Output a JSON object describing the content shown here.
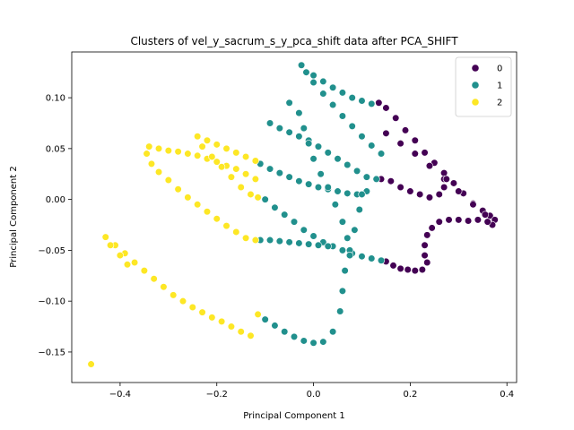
{
  "chart_data": {
    "type": "scatter",
    "title": "Clusters of vel_y_sacrum_s_y_pca_shift data after PCA_SHIFT",
    "xlabel": "Principal Component 1",
    "ylabel": "Principal Component 2",
    "xlim": [
      -0.5,
      0.42
    ],
    "ylim": [
      -0.18,
      0.145
    ],
    "xticks": [
      -0.4,
      -0.2,
      0.0,
      0.2,
      0.4
    ],
    "xtick_labels": [
      "−0.4",
      "−0.2",
      "0.0",
      "0.2",
      "0.4"
    ],
    "yticks": [
      -0.15,
      -0.1,
      -0.05,
      0.0,
      0.05,
      0.1
    ],
    "ytick_labels": [
      "−0.15",
      "−0.10",
      "−0.05",
      "0.00",
      "0.05",
      "0.10"
    ],
    "grid": false,
    "legend": {
      "placement": "top-right",
      "title": ""
    },
    "series": [
      {
        "name": "0",
        "color": "#440154",
        "points": [
          [
            0.135,
            0.095
          ],
          [
            0.15,
            0.09
          ],
          [
            0.17,
            0.08
          ],
          [
            0.19,
            0.068
          ],
          [
            0.21,
            0.058
          ],
          [
            0.23,
            0.046
          ],
          [
            0.25,
            0.036
          ],
          [
            0.27,
            0.026
          ],
          [
            0.29,
            0.016
          ],
          [
            0.31,
            0.006
          ],
          [
            0.33,
            -0.004
          ],
          [
            0.35,
            -0.011
          ],
          [
            0.365,
            -0.016
          ],
          [
            0.375,
            -0.02
          ],
          [
            0.37,
            -0.025
          ],
          [
            0.15,
            0.065
          ],
          [
            0.18,
            0.055
          ],
          [
            0.21,
            0.045
          ],
          [
            0.24,
            0.033
          ],
          [
            0.27,
            0.02
          ],
          [
            0.3,
            0.008
          ],
          [
            0.33,
            -0.005
          ],
          [
            0.355,
            -0.015
          ],
          [
            0.14,
            0.02
          ],
          [
            0.16,
            0.018
          ],
          [
            0.18,
            0.012
          ],
          [
            0.2,
            0.008
          ],
          [
            0.22,
            0.005
          ],
          [
            0.24,
            0.002
          ],
          [
            0.26,
            0.005
          ],
          [
            0.27,
            0.012
          ],
          [
            0.275,
            0.02
          ],
          [
            0.36,
            -0.022
          ],
          [
            0.34,
            -0.02
          ],
          [
            0.32,
            -0.021
          ],
          [
            0.3,
            -0.02
          ],
          [
            0.28,
            -0.02
          ],
          [
            0.26,
            -0.022
          ],
          [
            0.245,
            -0.028
          ],
          [
            0.235,
            -0.035
          ],
          [
            0.23,
            -0.045
          ],
          [
            0.23,
            -0.055
          ],
          [
            0.235,
            -0.062
          ],
          [
            0.225,
            -0.069
          ],
          [
            0.21,
            -0.07
          ],
          [
            0.195,
            -0.069
          ],
          [
            0.18,
            -0.068
          ],
          [
            0.165,
            -0.065
          ],
          [
            0.15,
            -0.061
          ]
        ]
      },
      {
        "name": "1",
        "color": "#21908d",
        "points": [
          [
            -0.025,
            0.132
          ],
          [
            -0.015,
            0.125
          ],
          [
            0.0,
            0.122
          ],
          [
            0.02,
            0.116
          ],
          [
            0.04,
            0.11
          ],
          [
            0.06,
            0.105
          ],
          [
            0.08,
            0.1
          ],
          [
            0.1,
            0.097
          ],
          [
            0.12,
            0.094
          ],
          [
            0.0,
            0.115
          ],
          [
            0.02,
            0.104
          ],
          [
            0.04,
            0.093
          ],
          [
            0.06,
            0.082
          ],
          [
            0.08,
            0.072
          ],
          [
            0.1,
            0.062
          ],
          [
            0.12,
            0.053
          ],
          [
            0.14,
            0.045
          ],
          [
            -0.09,
            0.075
          ],
          [
            -0.07,
            0.07
          ],
          [
            -0.05,
            0.066
          ],
          [
            -0.03,
            0.062
          ],
          [
            -0.01,
            0.058
          ],
          [
            0.01,
            0.052
          ],
          [
            0.03,
            0.046
          ],
          [
            0.05,
            0.04
          ],
          [
            0.07,
            0.034
          ],
          [
            0.09,
            0.028
          ],
          [
            0.11,
            0.022
          ],
          [
            0.13,
            0.02
          ],
          [
            -0.11,
            0.035
          ],
          [
            -0.09,
            0.03
          ],
          [
            -0.07,
            0.026
          ],
          [
            -0.05,
            0.022
          ],
          [
            -0.03,
            0.018
          ],
          [
            -0.01,
            0.015
          ],
          [
            0.01,
            0.012
          ],
          [
            0.03,
            0.01
          ],
          [
            0.05,
            0.008
          ],
          [
            0.07,
            0.006
          ],
          [
            0.09,
            0.005
          ],
          [
            0.11,
            0.008
          ],
          [
            -0.1,
            -0.0
          ],
          [
            -0.08,
            -0.008
          ],
          [
            -0.06,
            -0.015
          ],
          [
            -0.04,
            -0.022
          ],
          [
            -0.02,
            -0.03
          ],
          [
            0.0,
            -0.036
          ],
          [
            0.02,
            -0.042
          ],
          [
            0.04,
            -0.046
          ],
          [
            0.06,
            -0.05
          ],
          [
            0.08,
            -0.053
          ],
          [
            0.1,
            -0.056
          ],
          [
            0.12,
            -0.058
          ],
          [
            0.14,
            -0.06
          ],
          [
            -0.11,
            -0.04
          ],
          [
            -0.09,
            -0.04
          ],
          [
            -0.07,
            -0.041
          ],
          [
            -0.05,
            -0.042
          ],
          [
            -0.03,
            -0.043
          ],
          [
            -0.01,
            -0.044
          ],
          [
            0.01,
            -0.045
          ],
          [
            0.03,
            -0.046
          ],
          [
            -0.1,
            -0.118
          ],
          [
            -0.08,
            -0.124
          ],
          [
            -0.06,
            -0.13
          ],
          [
            -0.04,
            -0.135
          ],
          [
            -0.02,
            -0.139
          ],
          [
            0.0,
            -0.141
          ],
          [
            0.02,
            -0.14
          ],
          [
            0.04,
            -0.13
          ],
          [
            0.055,
            -0.11
          ],
          [
            0.06,
            -0.09
          ],
          [
            0.065,
            -0.07
          ],
          [
            0.075,
            -0.05
          ],
          [
            0.085,
            -0.03
          ],
          [
            0.095,
            -0.01
          ],
          [
            0.1,
            0.005
          ],
          [
            -0.05,
            0.095
          ],
          [
            -0.03,
            0.085
          ],
          [
            -0.02,
            0.07
          ],
          [
            -0.01,
            0.055
          ],
          [
            0.0,
            0.04
          ],
          [
            0.015,
            0.025
          ],
          [
            0.03,
            0.012
          ],
          [
            0.045,
            -0.005
          ],
          [
            0.06,
            -0.022
          ],
          [
            0.07,
            -0.038
          ],
          [
            0.075,
            -0.055
          ]
        ]
      },
      {
        "name": "2",
        "color": "#fde725",
        "points": [
          [
            -0.46,
            -0.162
          ],
          [
            -0.43,
            -0.037
          ],
          [
            -0.41,
            -0.045
          ],
          [
            -0.39,
            -0.053
          ],
          [
            -0.37,
            -0.062
          ],
          [
            -0.35,
            -0.07
          ],
          [
            -0.33,
            -0.078
          ],
          [
            -0.31,
            -0.086
          ],
          [
            -0.29,
            -0.094
          ],
          [
            -0.27,
            -0.1
          ],
          [
            -0.25,
            -0.106
          ],
          [
            -0.23,
            -0.111
          ],
          [
            -0.21,
            -0.116
          ],
          [
            -0.19,
            -0.12
          ],
          [
            -0.17,
            -0.125
          ],
          [
            -0.15,
            -0.13
          ],
          [
            -0.13,
            -0.134
          ],
          [
            -0.115,
            -0.113
          ],
          [
            -0.42,
            -0.045
          ],
          [
            -0.4,
            -0.055
          ],
          [
            -0.385,
            -0.064
          ],
          [
            -0.34,
            0.052
          ],
          [
            -0.32,
            0.05
          ],
          [
            -0.3,
            0.048
          ],
          [
            -0.28,
            0.047
          ],
          [
            -0.26,
            0.045
          ],
          [
            -0.24,
            0.043
          ],
          [
            -0.22,
            0.04
          ],
          [
            -0.2,
            0.037
          ],
          [
            -0.18,
            0.033
          ],
          [
            -0.16,
            0.03
          ],
          [
            -0.14,
            0.025
          ],
          [
            -0.12,
            0.02
          ],
          [
            -0.345,
            0.045
          ],
          [
            -0.335,
            0.035
          ],
          [
            -0.32,
            0.027
          ],
          [
            -0.3,
            0.019
          ],
          [
            -0.28,
            0.01
          ],
          [
            -0.26,
            0.002
          ],
          [
            -0.24,
            -0.005
          ],
          [
            -0.22,
            -0.012
          ],
          [
            -0.2,
            -0.019
          ],
          [
            -0.18,
            -0.026
          ],
          [
            -0.16,
            -0.032
          ],
          [
            -0.14,
            -0.038
          ],
          [
            -0.12,
            -0.04
          ],
          [
            -0.24,
            0.062
          ],
          [
            -0.22,
            0.058
          ],
          [
            -0.2,
            0.054
          ],
          [
            -0.18,
            0.05
          ],
          [
            -0.16,
            0.046
          ],
          [
            -0.14,
            0.042
          ],
          [
            -0.12,
            0.038
          ],
          [
            -0.23,
            0.052
          ],
          [
            -0.21,
            0.042
          ],
          [
            -0.19,
            0.032
          ],
          [
            -0.17,
            0.022
          ],
          [
            -0.15,
            0.012
          ],
          [
            -0.13,
            0.005
          ],
          [
            -0.115,
            0.002
          ]
        ]
      }
    ]
  }
}
